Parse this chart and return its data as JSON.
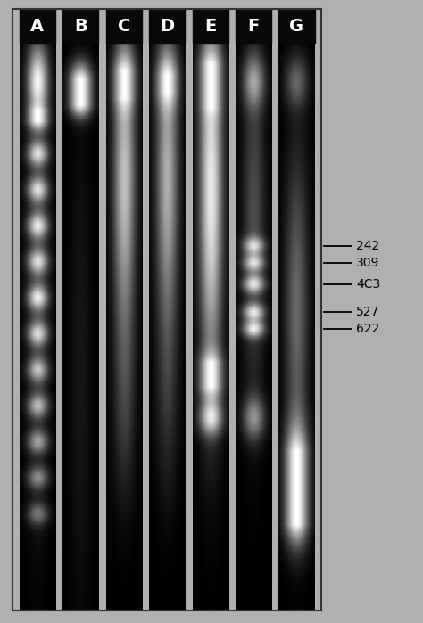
{
  "figure_width": 4.74,
  "figure_height": 6.99,
  "dpi": 100,
  "bg_outer": "#b0b0b0",
  "gel_bg": "#111111",
  "lane_labels": [
    "A",
    "B",
    "C",
    "D",
    "E",
    "F",
    "G"
  ],
  "label_fontsize": 14,
  "marker_fontsize": 10,
  "markers": {
    "622": 0.468,
    "527": 0.496,
    "4C3": 0.543,
    "309": 0.578,
    "242": 0.607
  }
}
